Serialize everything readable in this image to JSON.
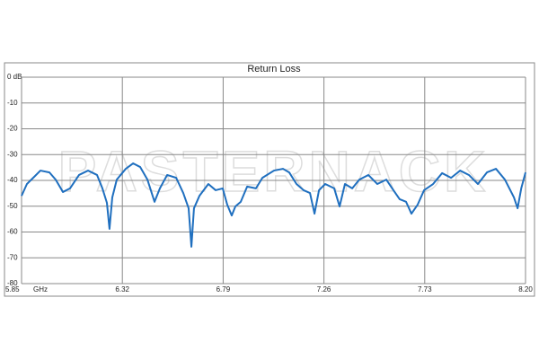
{
  "chart_data": {
    "type": "line",
    "title": "Return Loss",
    "watermark": "PASTERNACK",
    "x_label": "GHz",
    "x": [
      5.85,
      5.875,
      5.909,
      5.938,
      5.98,
      6.009,
      6.043,
      6.076,
      6.118,
      6.16,
      6.202,
      6.227,
      6.248,
      6.26,
      6.273,
      6.294,
      6.336,
      6.37,
      6.403,
      6.437,
      6.47,
      6.495,
      6.529,
      6.571,
      6.604,
      6.629,
      6.642,
      6.654,
      6.68,
      6.721,
      6.755,
      6.788,
      6.809,
      6.83,
      6.847,
      6.872,
      6.902,
      6.943,
      6.973,
      7.027,
      7.069,
      7.098,
      7.132,
      7.165,
      7.195,
      7.216,
      7.237,
      7.266,
      7.308,
      7.333,
      7.358,
      7.392,
      7.425,
      7.467,
      7.509,
      7.551,
      7.584,
      7.613,
      7.643,
      7.668,
      7.697,
      7.727,
      7.769,
      7.811,
      7.853,
      7.895,
      7.936,
      7.978,
      8.02,
      8.062,
      8.104,
      8.146,
      8.163,
      8.18,
      8.2
    ],
    "values": [
      -46,
      -41.4,
      -38.6,
      -36.2,
      -36.9,
      -39.7,
      -44.5,
      -43.1,
      -37.9,
      -36.2,
      -37.9,
      -43.1,
      -48.7,
      -58.8,
      -46.6,
      -39.7,
      -35.5,
      -33.4,
      -34.8,
      -39.7,
      -48.3,
      -43.1,
      -37.9,
      -39,
      -44.9,
      -50.8,
      -65.7,
      -50.8,
      -45.9,
      -41.4,
      -43.8,
      -43.1,
      -49.4,
      -53.6,
      -50.1,
      -48.3,
      -42.4,
      -43.1,
      -39,
      -36.2,
      -35.5,
      -36.9,
      -41.4,
      -43.8,
      -44.9,
      -52.9,
      -43.8,
      -41.4,
      -43.1,
      -50.1,
      -41.4,
      -43.1,
      -39.7,
      -37.9,
      -41.4,
      -39.7,
      -43.8,
      -47.3,
      -48.3,
      -52.9,
      -49.4,
      -43.8,
      -41.4,
      -37.2,
      -39,
      -36.2,
      -37.9,
      -41.4,
      -36.9,
      -35.5,
      -39.7,
      -46.6,
      -50.8,
      -43.1,
      -36.9
    ],
    "color": "#1f6fbf",
    "xlim": [
      5.85,
      8.2
    ],
    "xticks": [
      5.85,
      6.32,
      6.79,
      7.26,
      7.73,
      {
        "value": 8.2,
        "label": "8.20"
      }
    ],
    "ylim": [
      -80,
      0
    ],
    "yticks": [
      {
        "value": 0,
        "label": "0 dB"
      },
      -10,
      -20,
      -30,
      -40,
      -50,
      -60,
      -70,
      -80
    ],
    "grid": true
  }
}
